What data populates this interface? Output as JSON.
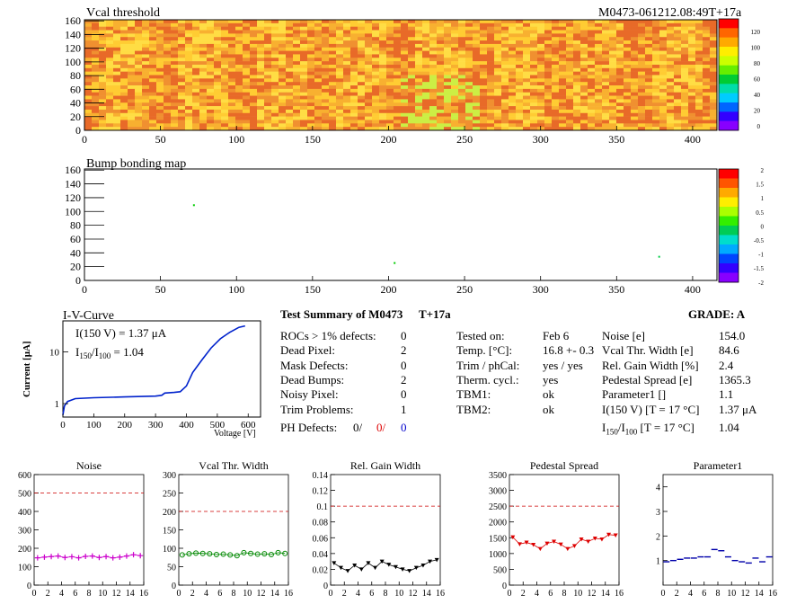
{
  "header": {
    "map_title": "Vcal threshold",
    "module_id": "M0473-061212.08:49T+17a",
    "bump_title": "Bump bonding map"
  },
  "maps": {
    "x_ticks": [
      "0",
      "50",
      "100",
      "150",
      "200",
      "250",
      "300",
      "350",
      "400"
    ],
    "y_ticks": [
      "0",
      "20",
      "40",
      "60",
      "80",
      "100",
      "120",
      "140",
      "160"
    ],
    "vcal_scale": [
      "120",
      "100",
      "80",
      "60",
      "40",
      "20",
      "0"
    ],
    "bump_scale": [
      "2",
      "1.5",
      "1",
      "0.5",
      "0",
      "-0.5",
      "-1",
      "-1.5",
      "-2"
    ],
    "heat_colors": [
      "#ffdd44",
      "#ffcc33",
      "#f8b030",
      "#f09030",
      "#e86a28"
    ],
    "bump_points": [
      [
        72,
        108,
        "#00cc00"
      ],
      [
        204,
        25,
        "#00cc00"
      ],
      [
        378,
        34,
        "#00cc44"
      ]
    ]
  },
  "iv": {
    "title": "I-V-Curve",
    "line1": "I(150 V) = 1.37 μA",
    "line2_a": "I",
    "line2_sub1": "150",
    "line2_b": "/I",
    "line2_sub2": "100",
    "line2_c": " =  1.04",
    "ylabel": "Current [μA]",
    "xlabel": "Voltage [V]",
    "x_ticks": [
      "0",
      "100",
      "200",
      "300",
      "400",
      "500",
      "600"
    ],
    "y_ticks": [
      "1",
      "10"
    ],
    "color": "#0022cc"
  },
  "summary": {
    "title": "Test Summary of M0473",
    "tag": "T+17a",
    "grade": "GRADE:  A",
    "left_rows": [
      [
        "ROCs > 1% defects:",
        "0"
      ],
      [
        "Dead Pixel:",
        "2"
      ],
      [
        "Mask Defects:",
        "0"
      ],
      [
        "Dead Bumps:",
        "2"
      ],
      [
        "Noisy Pixel:",
        "0"
      ],
      [
        "Trim Problems:",
        "1"
      ]
    ],
    "ph_label": "PH Defects:",
    "ph_values": [
      "0/",
      "0/",
      "0"
    ],
    "ph_colors": [
      "#000000",
      "#dd0000",
      "#0000cc"
    ],
    "mid_rows": [
      [
        "Tested on:",
        "Feb 6"
      ],
      [
        "Temp. [°C]:",
        "16.8 +- 0.3"
      ],
      [
        "Trim / phCal:",
        "yes / yes"
      ],
      [
        "Therm. cycl.:",
        "yes"
      ],
      [
        "TBM1:",
        "ok"
      ],
      [
        "TBM2:",
        "ok"
      ]
    ],
    "right_rows": [
      [
        "Noise [e]",
        "154.0"
      ],
      [
        "Vcal Thr. Width [e]",
        "84.6"
      ],
      [
        "Rel. Gain Width [%]",
        "2.4"
      ],
      [
        "Pedestal Spread [e]",
        "1365.3"
      ],
      [
        "Parameter1 []",
        "1.1"
      ],
      [
        "I(150 V) [T = 17 °C]",
        "1.37 μA"
      ]
    ],
    "ratio_label_a": "I",
    "ratio_sub1": "150",
    "ratio_label_b": "/I",
    "ratio_sub2": "100",
    "ratio_label_c": "  [T = 17 °C]",
    "ratio_value": "1.04"
  },
  "chart_data": [
    {
      "type": "scatter",
      "title": "Noise",
      "xlim": [
        0,
        16
      ],
      "ylim": [
        0,
        600
      ],
      "y_ticks": [
        "0",
        "100",
        "200",
        "300",
        "400",
        "500",
        "600"
      ],
      "x_ticks": [
        "0",
        "2",
        "4",
        "6",
        "8",
        "10",
        "12",
        "14",
        "16"
      ],
      "threshold": 500,
      "color": "#cc00cc",
      "marker": "cross",
      "values": [
        148,
        152,
        155,
        158,
        150,
        154,
        148,
        156,
        158,
        150,
        155,
        148,
        152,
        158,
        165,
        160
      ]
    },
    {
      "type": "scatter",
      "title": "Vcal Thr. Width",
      "xlim": [
        0,
        16
      ],
      "ylim": [
        0,
        300
      ],
      "y_ticks": [
        "0",
        "50",
        "100",
        "150",
        "200",
        "250",
        "300"
      ],
      "x_ticks": [
        "0",
        "2",
        "4",
        "6",
        "8",
        "10",
        "12",
        "14",
        "16"
      ],
      "threshold": 200,
      "color": "#008800",
      "marker": "circle",
      "values": [
        82,
        85,
        87,
        86,
        85,
        83,
        84,
        82,
        80,
        88,
        86,
        84,
        85,
        83,
        88,
        86
      ]
    },
    {
      "type": "scatter",
      "title": "Rel. Gain Width",
      "xlim": [
        0,
        16
      ],
      "ylim": [
        0,
        0.14
      ],
      "y_ticks": [
        "0",
        "0.02",
        "0.04",
        "0.06",
        "0.08",
        "0.1",
        "0.12",
        "0.14"
      ],
      "x_ticks": [
        "0",
        "2",
        "4",
        "6",
        "8",
        "10",
        "12",
        "14",
        "16"
      ],
      "threshold": 0.1,
      "color": "#000000",
      "marker": "triangle",
      "values": [
        0.028,
        0.022,
        0.018,
        0.025,
        0.02,
        0.028,
        0.022,
        0.03,
        0.026,
        0.023,
        0.02,
        0.018,
        0.022,
        0.025,
        0.03,
        0.032
      ]
    },
    {
      "type": "scatter",
      "title": "Pedestal Spread",
      "xlim": [
        0,
        16
      ],
      "ylim": [
        0,
        3500
      ],
      "y_ticks": [
        "0",
        "500",
        "1000",
        "1500",
        "2000",
        "2500",
        "3000",
        "3500"
      ],
      "x_ticks": [
        "0",
        "2",
        "4",
        "6",
        "8",
        "10",
        "12",
        "14",
        "16"
      ],
      "threshold": 2500,
      "color": "#dd0000",
      "marker": "triangle",
      "values": [
        1520,
        1300,
        1350,
        1280,
        1150,
        1320,
        1380,
        1290,
        1150,
        1240,
        1450,
        1380,
        1480,
        1450,
        1600,
        1580
      ]
    },
    {
      "type": "scatter",
      "title": "Parameter1",
      "xlim": [
        0,
        16
      ],
      "ylim": [
        0,
        4.5
      ],
      "y_ticks": [
        "1",
        "2",
        "3",
        "4"
      ],
      "x_ticks": [
        "0",
        "2",
        "4",
        "6",
        "8",
        "10",
        "12",
        "14",
        "16"
      ],
      "threshold": null,
      "color": "#0000aa",
      "marker": "hbar",
      "values": [
        0.95,
        1.0,
        1.05,
        1.1,
        1.1,
        1.15,
        1.15,
        1.45,
        1.4,
        1.15,
        1.0,
        0.95,
        0.9,
        1.1,
        0.95,
        1.15
      ]
    }
  ]
}
